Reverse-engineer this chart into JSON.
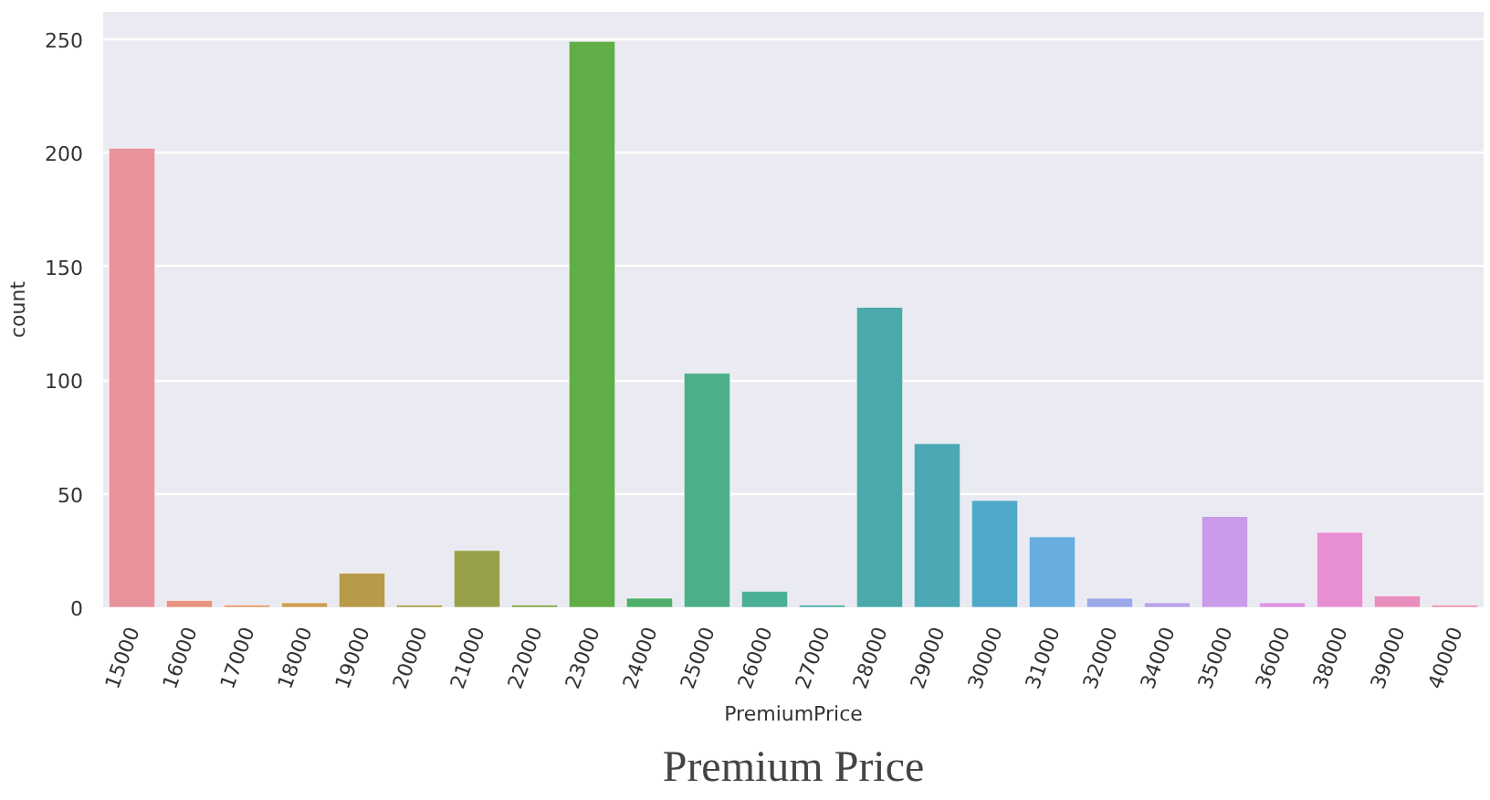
{
  "chart_data": {
    "type": "bar",
    "title": "Premium Price",
    "xlabel": "PremiumPrice",
    "ylabel": "count",
    "categories": [
      "15000",
      "16000",
      "17000",
      "18000",
      "19000",
      "20000",
      "21000",
      "22000",
      "23000",
      "24000",
      "25000",
      "26000",
      "27000",
      "28000",
      "29000",
      "30000",
      "31000",
      "32000",
      "34000",
      "35000",
      "36000",
      "38000",
      "39000",
      "40000"
    ],
    "values": [
      202,
      3,
      1,
      2,
      15,
      1,
      25,
      1,
      249,
      4,
      103,
      7,
      1,
      132,
      72,
      47,
      31,
      4,
      2,
      40,
      2,
      33,
      5,
      1
    ],
    "colors": [
      "#e8929c",
      "#e99481",
      "#e09a6a",
      "#d19c55",
      "#b79a4a",
      "#a89d4a",
      "#98a14a",
      "#7fa64a",
      "#61ae48",
      "#4fae6a",
      "#4daf88",
      "#4caf98",
      "#4bada7",
      "#4ba9ac",
      "#4ca8b4",
      "#50a8c8",
      "#67ade0",
      "#9aa8e8",
      "#b8a2ea",
      "#c99be8",
      "#de95e2",
      "#e88fd4",
      "#ea8fbd",
      "#ea91ab"
    ],
    "ylim": [
      0,
      262
    ],
    "yticks": [
      0,
      50,
      100,
      150,
      200,
      250
    ],
    "grid": "y"
  }
}
